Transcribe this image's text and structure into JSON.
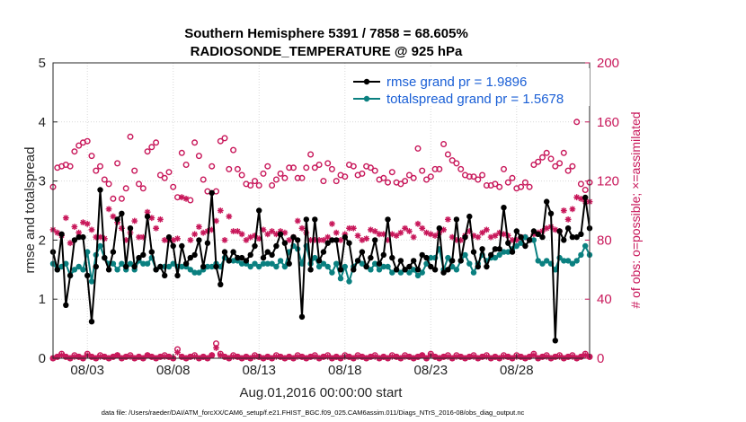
{
  "chart_data": {
    "type": "line",
    "title": "Southern Hemisphere 5391 / 7858 = 68.605%",
    "subtitle": "RADIOSONDE_TEMPERATURE @ 925 hPa",
    "xlabel": "Aug.01,2016 00:00:00 start",
    "ylabel": "rmse and totalspread",
    "ylabel_right": "# of obs: o=possible; ×=assimilated",
    "ylim": [
      0,
      5
    ],
    "ylim_right": [
      0,
      200
    ],
    "xlim": [
      1.0,
      32.25
    ],
    "x_tick_values": [
      3,
      8,
      13,
      18,
      23,
      28
    ],
    "x_tick_labels": [
      "08/03",
      "08/08",
      "08/13",
      "08/18",
      "08/23",
      "08/28"
    ],
    "y_ticks": [
      "0",
      "1",
      "2",
      "3",
      "4",
      "5"
    ],
    "y_ticks_right": [
      "0",
      "40",
      "80",
      "120",
      "160",
      "200"
    ],
    "legend": [
      "rmse grand pr = 1.9896",
      "totalspread grand pr = 1.5678"
    ],
    "footer": "data file: /Users/raeder/DAI/ATM_forcXX/CAM6_setup/f.e21.FHIST_BGC.f09_025.CAM6assim.011/Diags_NTrS_2016-08/obs_diag_output.nc",
    "colors": {
      "rmse": "#000000",
      "spread": "#0a8080",
      "obs": "#c8175a",
      "legend_text": "#1a5fd6"
    },
    "x": [
      1.0,
      1.25,
      1.5,
      1.75,
      2.0,
      2.25,
      2.5,
      2.75,
      3.0,
      3.25,
      3.5,
      3.75,
      4.0,
      4.25,
      4.5,
      4.75,
      5.0,
      5.25,
      5.5,
      5.75,
      6.0,
      6.25,
      6.5,
      6.75,
      7.0,
      7.25,
      7.5,
      7.75,
      8.0,
      8.25,
      8.5,
      8.75,
      9.0,
      9.25,
      9.5,
      9.75,
      10.0,
      10.25,
      10.5,
      10.75,
      11.0,
      11.25,
      11.5,
      11.75,
      12.0,
      12.25,
      12.5,
      12.75,
      13.0,
      13.25,
      13.5,
      13.75,
      14.0,
      14.25,
      14.5,
      14.75,
      15.0,
      15.25,
      15.5,
      15.75,
      16.0,
      16.25,
      16.5,
      16.75,
      17.0,
      17.25,
      17.5,
      17.75,
      18.0,
      18.25,
      18.5,
      18.75,
      19.0,
      19.25,
      19.5,
      19.75,
      20.0,
      20.25,
      20.5,
      20.75,
      21.0,
      21.25,
      21.5,
      21.75,
      22.0,
      22.25,
      22.5,
      22.75,
      23.0,
      23.25,
      23.5,
      23.75,
      24.0,
      24.25,
      24.5,
      24.75,
      25.0,
      25.25,
      25.5,
      25.75,
      26.0,
      26.25,
      26.5,
      26.75,
      27.0,
      27.25,
      27.5,
      27.75,
      28.0,
      28.25,
      28.5,
      28.75,
      29.0,
      29.25,
      29.5,
      29.75,
      30.0,
      30.25,
      30.5,
      30.75,
      31.0,
      31.25,
      31.5,
      31.75,
      32.0,
      32.25
    ],
    "series": [
      {
        "name": "rmse grand pr = 1.9896",
        "values": [
          1.8,
          1.5,
          2.1,
          0.9,
          1.4,
          2.0,
          2.05,
          2.05,
          1.4,
          0.62,
          1.55,
          2.85,
          1.7,
          1.5,
          1.8,
          2.35,
          2.45,
          1.55,
          2.2,
          1.55,
          1.7,
          1.75,
          2.4,
          1.8,
          1.5,
          1.55,
          1.4,
          2.05,
          1.9,
          1.4,
          1.9,
          1.6,
          1.7,
          1.75,
          2.0,
          1.55,
          1.95,
          2.8,
          1.55,
          1.25,
          1.8,
          1.65,
          1.8,
          1.7,
          1.7,
          1.65,
          1.75,
          1.9,
          2.5,
          1.7,
          1.8,
          1.75,
          1.9,
          2.1,
          1.95,
          1.6,
          2.05,
          2.0,
          0.7,
          2.35,
          1.5,
          2.35,
          1.65,
          1.8,
          1.95,
          2.0,
          2.0,
          1.5,
          2.05,
          1.95,
          1.5,
          1.65,
          1.8,
          1.55,
          1.7,
          2.0,
          1.6,
          1.75,
          2.35,
          1.7,
          1.5,
          1.65,
          1.5,
          1.55,
          1.65,
          1.5,
          1.75,
          1.7,
          1.55,
          1.5,
          2.2,
          1.45,
          1.5,
          1.65,
          2.35,
          1.65,
          2.05,
          2.4,
          1.8,
          1.55,
          1.85,
          1.55,
          1.75,
          1.85,
          1.85,
          2.55,
          1.95,
          1.8,
          2.15,
          2.05,
          1.9,
          2.0,
          2.15,
          2.1,
          2.05,
          2.65,
          2.45,
          0.3,
          2.15,
          2.0,
          2.2,
          2.05,
          2.05,
          2.1,
          2.72,
          2.2
        ]
      },
      {
        "name": "totalspread grand pr = 1.5678",
        "values": [
          1.6,
          1.5,
          1.55,
          1.6,
          1.4,
          1.5,
          1.55,
          1.5,
          1.8,
          1.3,
          1.75,
          1.9,
          1.7,
          1.6,
          1.6,
          1.5,
          1.6,
          1.5,
          1.6,
          1.5,
          1.65,
          1.6,
          1.6,
          1.7,
          1.5,
          1.55,
          1.55,
          1.55,
          1.6,
          1.55,
          1.55,
          1.55,
          1.5,
          1.45,
          1.45,
          1.5,
          1.55,
          1.55,
          1.6,
          1.55,
          1.7,
          1.65,
          1.65,
          1.65,
          1.6,
          1.6,
          1.55,
          1.6,
          1.55,
          1.6,
          1.6,
          1.6,
          1.55,
          1.65,
          1.55,
          1.8,
          1.9,
          1.85,
          1.6,
          1.9,
          1.6,
          1.7,
          1.55,
          1.6,
          1.55,
          1.45,
          1.6,
          1.35,
          1.55,
          1.3,
          1.55,
          1.65,
          1.6,
          1.55,
          1.5,
          1.6,
          1.5,
          1.55,
          1.55,
          1.45,
          1.5,
          1.45,
          1.5,
          1.45,
          1.5,
          1.4,
          1.45,
          1.6,
          1.7,
          1.7,
          1.85,
          1.5,
          1.7,
          1.55,
          1.5,
          1.65,
          1.75,
          1.6,
          1.45,
          1.6,
          1.75,
          1.65,
          1.7,
          1.7,
          1.75,
          1.8,
          1.8,
          1.85,
          1.9,
          1.95,
          2.05,
          2.0,
          2.0,
          1.65,
          1.6,
          1.65,
          1.6,
          1.5,
          1.7,
          1.65,
          1.65,
          1.6,
          1.65,
          1.75,
          1.9,
          1.75
        ]
      },
      {
        "name": "# obs possible",
        "values": [
          116,
          129,
          130,
          131,
          130,
          140,
          144,
          146,
          147,
          137,
          127,
          130,
          121,
          118,
          108,
          132,
          108,
          115,
          150,
          127,
          118,
          115,
          140,
          143,
          146,
          124,
          122,
          126,
          116,
          109,
          139,
          131,
          107,
          146,
          137,
          121,
          113,
          130,
          113,
          147,
          149,
          128,
          141,
          128,
          124,
          118,
          117,
          120,
          117,
          125,
          130,
          117,
          121,
          125,
          122,
          129,
          129,
          122,
          122,
          129,
          138,
          129,
          131,
          120,
          132,
          128,
          120,
          124,
          123,
          131,
          130,
          124,
          125,
          130,
          129,
          127,
          121,
          122,
          119,
          126,
          119,
          118,
          120,
          124,
          122,
          142,
          127,
          121,
          123,
          128,
          128,
          145,
          138,
          134,
          132,
          128,
          124,
          123,
          123,
          121,
          124,
          117,
          117,
          118,
          116,
          128,
          119,
          122,
          115,
          116,
          119,
          116,
          131,
          133,
          136,
          139,
          135,
          130,
          132,
          139,
          127,
          130,
          160,
          118,
          114,
          119
        ]
      },
      {
        "name": "# obs assimilated",
        "values": [
          87,
          85,
          83,
          95,
          78,
          89,
          85,
          92,
          91,
          87,
          82,
          82,
          81,
          101,
          96,
          92,
          88,
          80,
          85,
          93,
          82,
          82,
          99,
          95,
          88,
          94,
          80,
          80,
          80,
          81,
          109,
          108,
          80,
          84,
          89,
          85,
          86,
          87,
          93,
          100,
          80,
          96,
          86,
          86,
          84,
          80,
          82,
          83,
          81,
          87,
          84,
          86,
          84,
          86,
          85,
          80,
          82,
          93,
          88,
          85,
          80,
          80,
          80,
          80,
          82,
          91,
          85,
          80,
          84,
          88,
          88,
          83,
          80,
          81,
          87,
          86,
          84,
          84,
          80,
          84,
          83,
          85,
          88,
          86,
          82,
          91,
          88,
          85,
          84,
          83,
          85,
          87,
          94,
          82,
          80,
          80,
          83,
          86,
          83,
          82,
          85,
          87,
          82,
          83,
          85,
          84,
          83,
          80,
          80,
          82,
          82,
          80,
          84,
          85,
          86,
          88,
          89,
          87,
          86,
          100,
          94,
          101,
          109,
          108,
          106,
          106
        ]
      },
      {
        "name": "# obs possible (bottom)",
        "values": [
          0,
          1,
          3,
          1,
          0,
          2,
          1,
          0,
          3,
          1,
          0,
          2,
          1,
          0,
          1,
          2,
          0,
          1,
          2,
          0,
          1,
          0,
          2,
          1,
          0,
          1,
          2,
          1,
          0,
          6,
          1,
          0,
          1,
          2,
          0,
          1,
          0,
          2,
          10,
          3,
          1,
          0,
          2,
          1,
          0,
          1,
          0,
          2,
          1,
          0,
          1,
          0,
          2,
          1,
          0,
          1,
          0,
          2,
          1,
          0,
          1,
          2,
          0,
          1,
          2,
          0,
          1,
          0,
          2,
          1,
          0,
          2,
          1,
          0,
          1,
          2,
          0,
          1,
          0,
          2,
          1,
          0,
          2,
          1,
          0,
          1,
          2,
          0,
          3,
          1,
          0,
          1,
          2,
          0,
          2,
          1,
          0,
          1,
          2,
          0,
          1,
          2,
          0,
          1,
          0,
          2,
          1,
          0,
          2,
          1,
          0,
          1,
          3,
          0,
          1,
          2,
          0,
          1,
          2,
          0,
          1,
          2,
          0,
          1,
          3,
          1
        ]
      },
      {
        "name": "# obs assimilated (bottom)",
        "values": [
          0,
          1,
          2,
          1,
          0,
          1,
          1,
          0,
          2,
          1,
          0,
          1,
          1,
          0,
          1,
          2,
          0,
          1,
          1,
          0,
          1,
          0,
          2,
          1,
          0,
          1,
          1,
          1,
          0,
          4,
          1,
          0,
          1,
          1,
          0,
          1,
          0,
          2,
          7,
          2,
          1,
          0,
          1,
          1,
          0,
          1,
          0,
          1,
          1,
          0,
          1,
          0,
          1,
          1,
          0,
          1,
          0,
          1,
          1,
          0,
          1,
          1,
          0,
          1,
          1,
          0,
          1,
          0,
          1,
          1,
          0,
          1,
          1,
          0,
          1,
          1,
          0,
          1,
          0,
          1,
          1,
          0,
          1,
          1,
          0,
          1,
          2,
          0,
          2,
          1,
          0,
          1,
          1,
          0,
          1,
          1,
          0,
          1,
          1,
          0,
          1,
          1,
          0,
          1,
          0,
          1,
          1,
          0,
          1,
          1,
          0,
          1,
          2,
          0,
          1,
          1,
          0,
          1,
          1,
          0,
          1,
          1,
          0,
          1,
          2,
          1
        ]
      }
    ]
  }
}
